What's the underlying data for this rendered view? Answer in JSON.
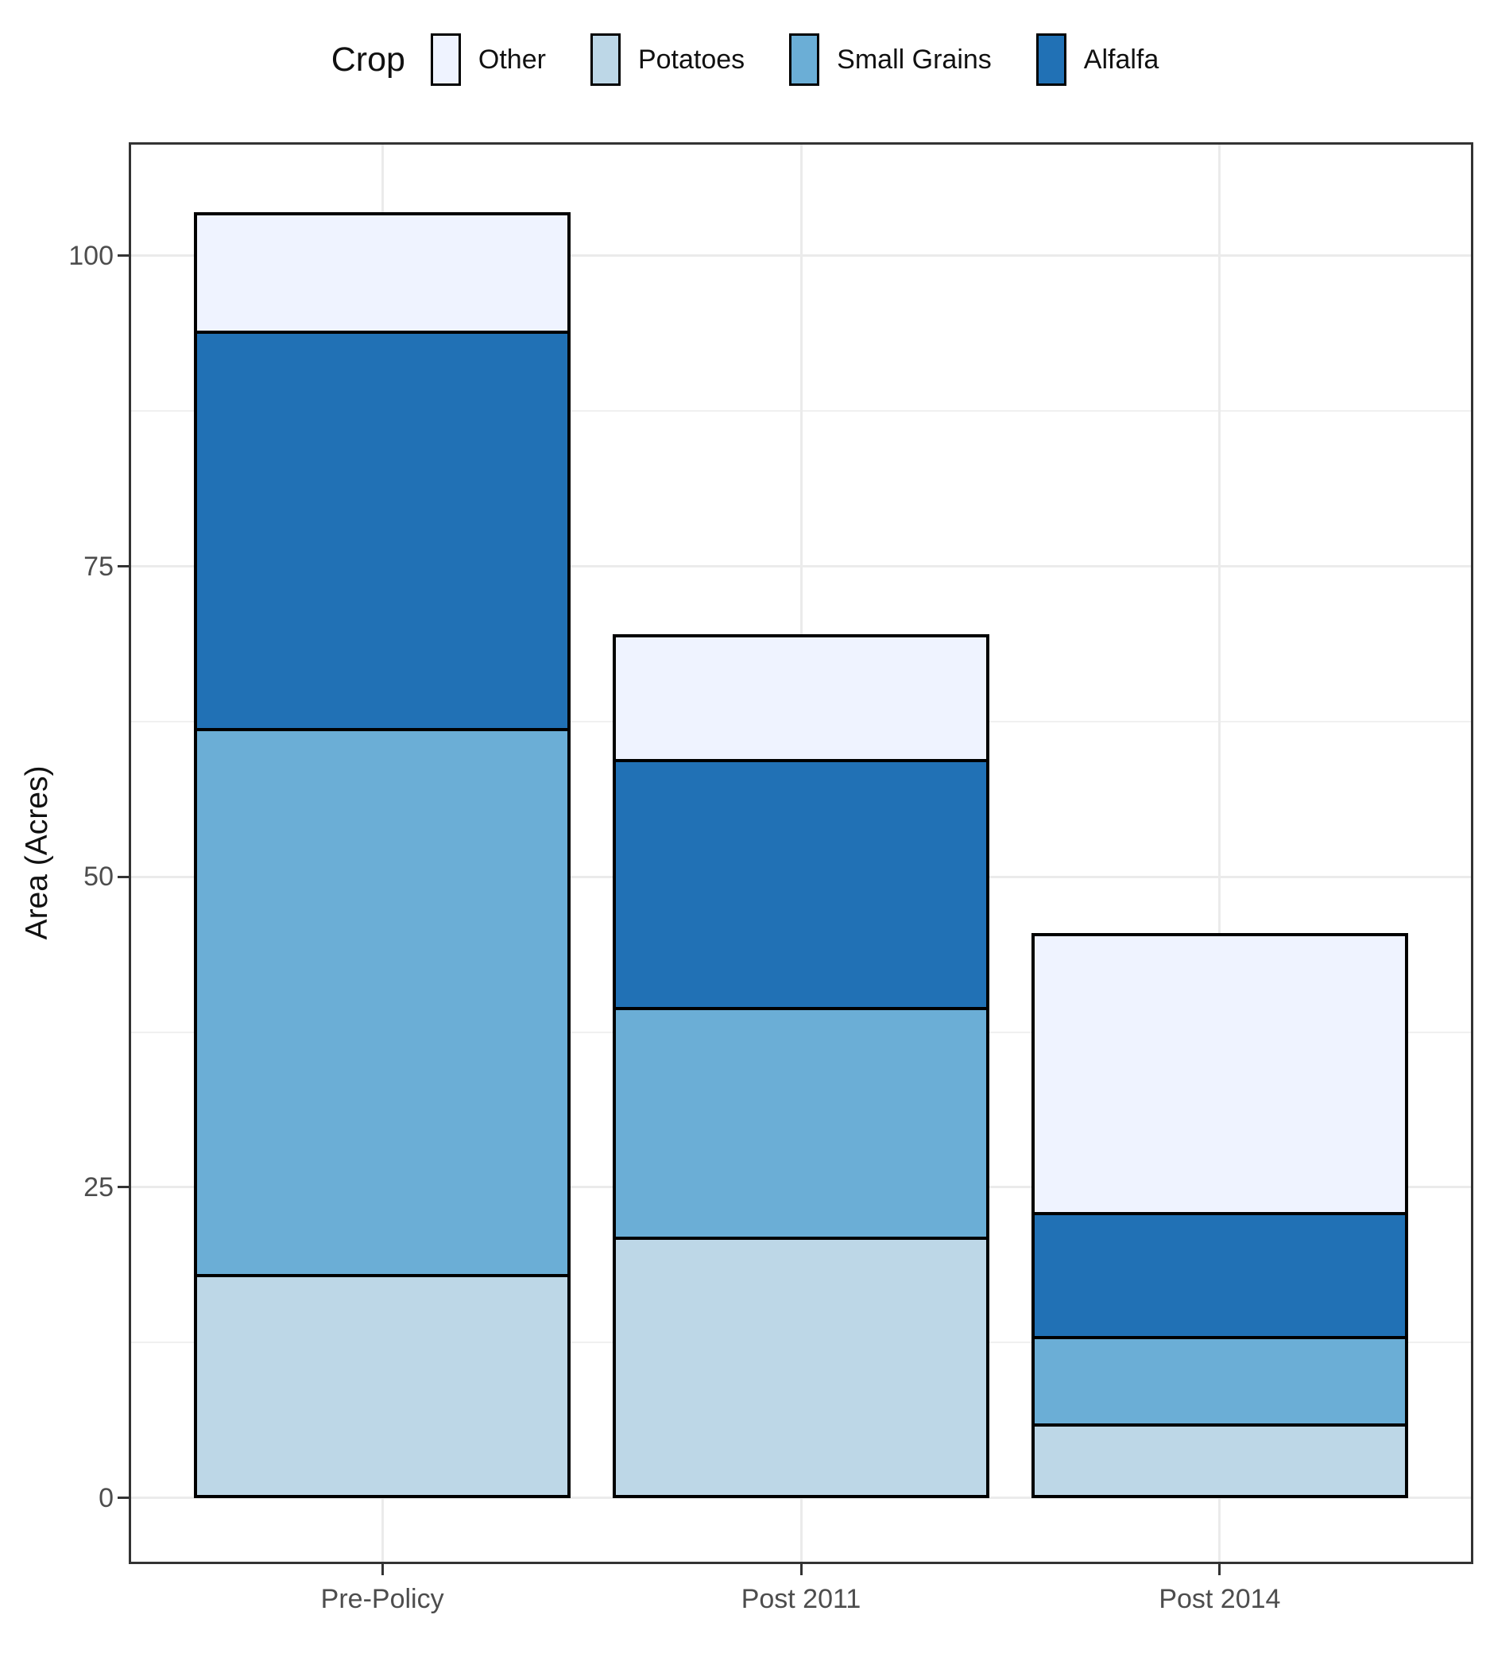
{
  "legend": {
    "title": "Crop"
  },
  "chart_data": {
    "type": "bar",
    "stacked": true,
    "title": "",
    "xlabel": "",
    "ylabel": "Area (Acres)",
    "categories": [
      "Pre-Policy",
      "Post 2011",
      "Post 2014"
    ],
    "series": [
      {
        "name": "Potatoes",
        "color": "#BDD7E7",
        "values": [
          18,
          21,
          6
        ]
      },
      {
        "name": "Small Grains",
        "color": "#6BAED6",
        "values": [
          44,
          18.5,
          7
        ]
      },
      {
        "name": "Alfalfa",
        "color": "#2171B5",
        "values": [
          32,
          20,
          10
        ]
      },
      {
        "name": "Other",
        "color": "#EFF3FF",
        "values": [
          9.5,
          10,
          22.5
        ]
      }
    ],
    "totals": [
      103.5,
      69.5,
      45.5
    ],
    "yticks": [
      0,
      25,
      50,
      75,
      100
    ],
    "ytick_labels": [
      "0",
      "25",
      "50",
      "75",
      "100"
    ],
    "yminor": [
      12.5,
      37.5,
      62.5,
      87.5
    ],
    "ylim": [
      -5.15,
      108.95
    ],
    "legend_order": [
      "Other",
      "Potatoes",
      "Small Grains",
      "Alfalfa"
    ],
    "legend_position": "top",
    "grid": true,
    "bar_outline_color": "#000000",
    "panel_border_color": "#333333",
    "bar_width_fraction": 0.9
  }
}
